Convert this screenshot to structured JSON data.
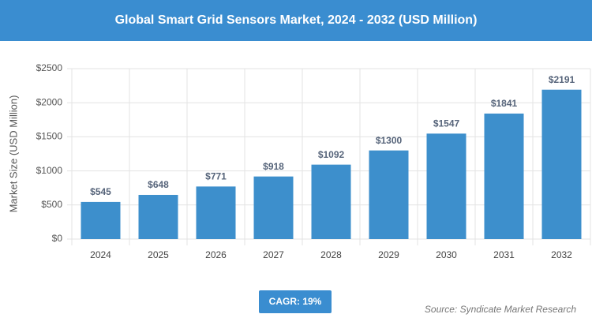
{
  "chart_data": {
    "type": "bar",
    "title": "Global Smart Grid Sensors Market, 2024 - 2032 (USD Million)",
    "y_axis_label": "Market Size (USD Million)",
    "categories": [
      "2024",
      "2025",
      "2026",
      "2027",
      "2028",
      "2029",
      "2030",
      "2031",
      "2032"
    ],
    "values": [
      545,
      648,
      771,
      918,
      1092,
      1300,
      1547,
      1841,
      2191
    ],
    "value_labels": [
      "$545",
      "$648",
      "$771",
      "$918",
      "$1092",
      "$1300",
      "$1547",
      "$1841",
      "$2191"
    ],
    "color": "#3d8fcc",
    "ylim": [
      0,
      2500
    ],
    "yticks": [
      {
        "value": 0,
        "label": "$0"
      },
      {
        "value": 500,
        "label": "$500"
      },
      {
        "value": 1000,
        "label": "$1000"
      },
      {
        "value": 1500,
        "label": "$1500"
      },
      {
        "value": 2000,
        "label": "$2000"
      },
      {
        "value": 2500,
        "label": "$2500"
      }
    ],
    "grid": true,
    "cagr": "CAGR: 19%",
    "source": "Source: Syndicate Market Research"
  }
}
